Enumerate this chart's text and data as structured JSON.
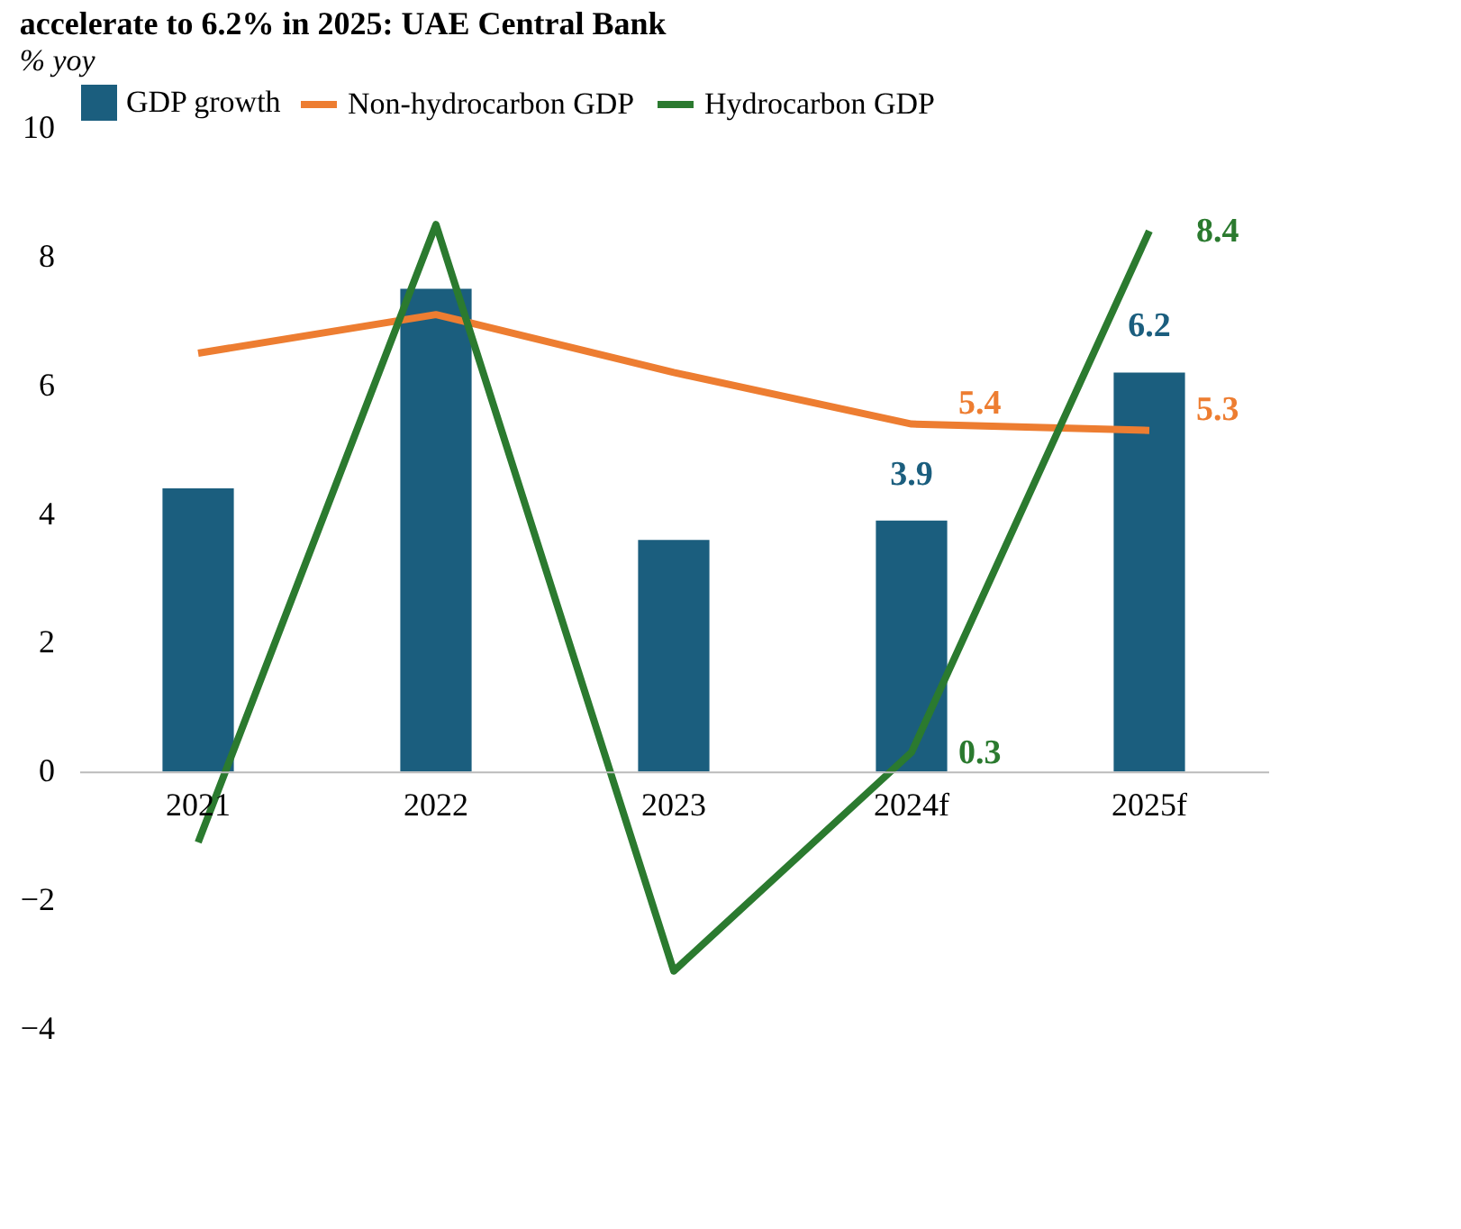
{
  "chart_data": {
    "type": "bar",
    "title": "accelerate to 6.2% in 2025: UAE Central Bank",
    "ylabel": "% yoy",
    "categories": [
      "2021",
      "2022",
      "2023",
      "2024f",
      "2025f"
    ],
    "series": [
      {
        "name": "GDP growth",
        "color": "#1b5e7e",
        "values": [
          4.4,
          7.5,
          3.6,
          3.9,
          6.2
        ],
        "value_labels": [
          null,
          null,
          null,
          "3.9",
          "6.2"
        ]
      },
      {
        "name": "Non-hydrocarbon GDP",
        "type": "line",
        "color": "#ed7d31",
        "values": [
          6.5,
          7.1,
          6.2,
          5.4,
          5.3
        ],
        "value_labels": [
          null,
          null,
          null,
          "5.4",
          "5.3"
        ]
      },
      {
        "name": "Hydrocarbon GDP",
        "type": "line",
        "color": "#2b7a2f",
        "values": [
          -1.1,
          8.5,
          -3.1,
          0.3,
          8.4
        ],
        "value_labels": [
          null,
          null,
          null,
          "0.3",
          "8.4"
        ]
      }
    ],
    "ylim": [
      -4,
      10
    ],
    "yticks": [
      -4,
      -2,
      0,
      2,
      4,
      6,
      8,
      10
    ],
    "grid": false,
    "legend": "top",
    "marker": "none",
    "line_style": "solid"
  }
}
